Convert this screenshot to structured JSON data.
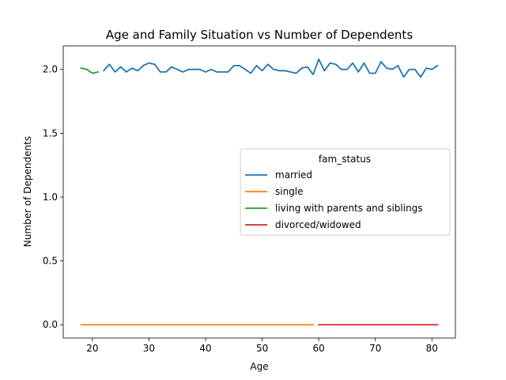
{
  "chart_data": {
    "type": "line",
    "title": "Age and Family Situation vs Number of Dependents",
    "xlabel": "Age",
    "ylabel": "Number of Dependents",
    "xlim": [
      14.85,
      84.15
    ],
    "ylim": [
      -0.104,
      2.184
    ],
    "xticks": [
      20,
      30,
      40,
      50,
      60,
      70,
      80
    ],
    "yticks": [
      0.0,
      0.5,
      1.0,
      1.5,
      2.0
    ],
    "ytick_labels": [
      "0.0",
      "0.5",
      "1.0",
      "1.5",
      "2.0"
    ],
    "grid": false,
    "legend": {
      "title": "fam_status",
      "placement": "center-right"
    },
    "series": [
      {
        "name": "married",
        "color": "#1f77b4",
        "x": [
          22,
          23,
          24,
          25,
          26,
          27,
          28,
          29,
          30,
          31,
          32,
          33,
          34,
          35,
          36,
          37,
          38,
          39,
          40,
          41,
          42,
          43,
          44,
          45,
          46,
          47,
          48,
          49,
          50,
          51,
          52,
          53,
          54,
          55,
          56,
          57,
          58,
          59,
          60,
          61,
          62,
          63,
          64,
          65,
          66,
          67,
          68,
          69,
          70,
          71,
          72,
          73,
          74,
          75,
          76,
          77,
          78,
          79,
          80,
          81
        ],
        "y": [
          1.99,
          2.04,
          1.98,
          2.02,
          1.98,
          2.01,
          1.99,
          2.03,
          2.05,
          2.04,
          1.98,
          1.98,
          2.02,
          2.0,
          1.98,
          2.0,
          2.0,
          2.0,
          1.98,
          2.0,
          1.98,
          1.98,
          1.98,
          2.03,
          2.03,
          2.0,
          1.97,
          2.03,
          1.99,
          2.04,
          2.0,
          1.99,
          1.99,
          1.98,
          1.97,
          2.01,
          2.02,
          1.96,
          2.08,
          1.99,
          2.05,
          2.04,
          2.0,
          2.0,
          2.05,
          1.98,
          2.05,
          1.97,
          1.97,
          2.06,
          2.01,
          2.0,
          2.03,
          1.94,
          2.0,
          2.0,
          1.94,
          2.01,
          2.0,
          2.03
        ]
      },
      {
        "name": "single",
        "color": "#ff7f0e",
        "x": [
          18,
          59
        ],
        "y": [
          0.0,
          0.0
        ]
      },
      {
        "name": "living with parents and siblings",
        "color": "#2ca02c",
        "x": [
          18,
          19,
          20,
          21
        ],
        "y": [
          2.01,
          2.0,
          1.97,
          1.98
        ]
      },
      {
        "name": "divorced/widowed",
        "color": "#d62728",
        "x": [
          60,
          81
        ],
        "y": [
          0.0,
          0.0
        ]
      }
    ]
  }
}
